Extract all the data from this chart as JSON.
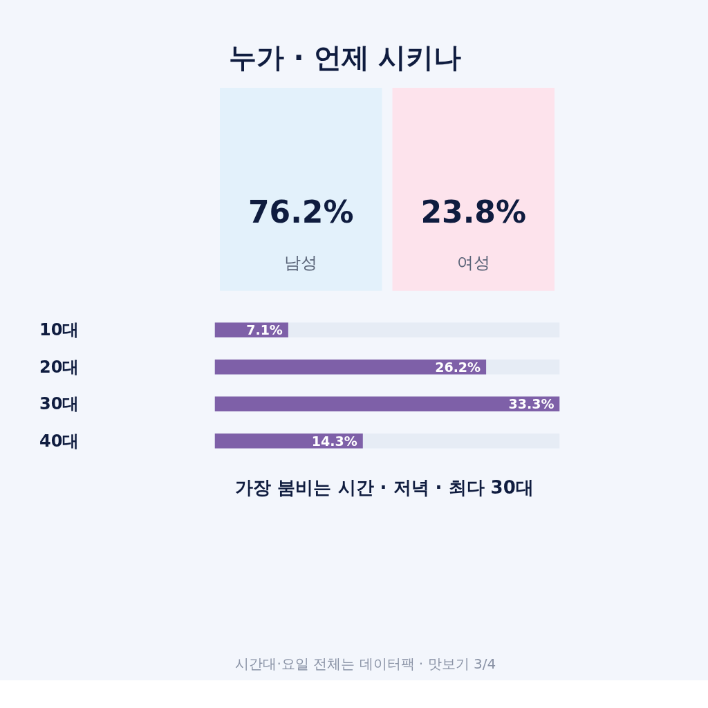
{
  "chart_data": [
    {
      "type": "other",
      "title": "누가 · 언제 시키나",
      "categories": [
        "남성",
        "여성"
      ],
      "value_labels": [
        "76.2%",
        "23.8%"
      ],
      "colors": [
        "#e3f1fb",
        "#fde3ec"
      ]
    },
    {
      "type": "bar",
      "orientation": "horizontal",
      "categories": [
        "10대",
        "20대",
        "30대",
        "40대"
      ],
      "values": [
        7.1,
        26.2,
        33.3,
        14.3
      ],
      "color": "#7e60a8",
      "value_labels": [
        "7.1%",
        "26.2%",
        "33.3%",
        "14.3%"
      ],
      "tick_labels": "y",
      "annotations": [
        "가장 붐비는 시간 · 저녁 · 최다 30대",
        "시간대·요일 전체는 데이터팩 · 맛보기 3/4"
      ]
    }
  ]
}
